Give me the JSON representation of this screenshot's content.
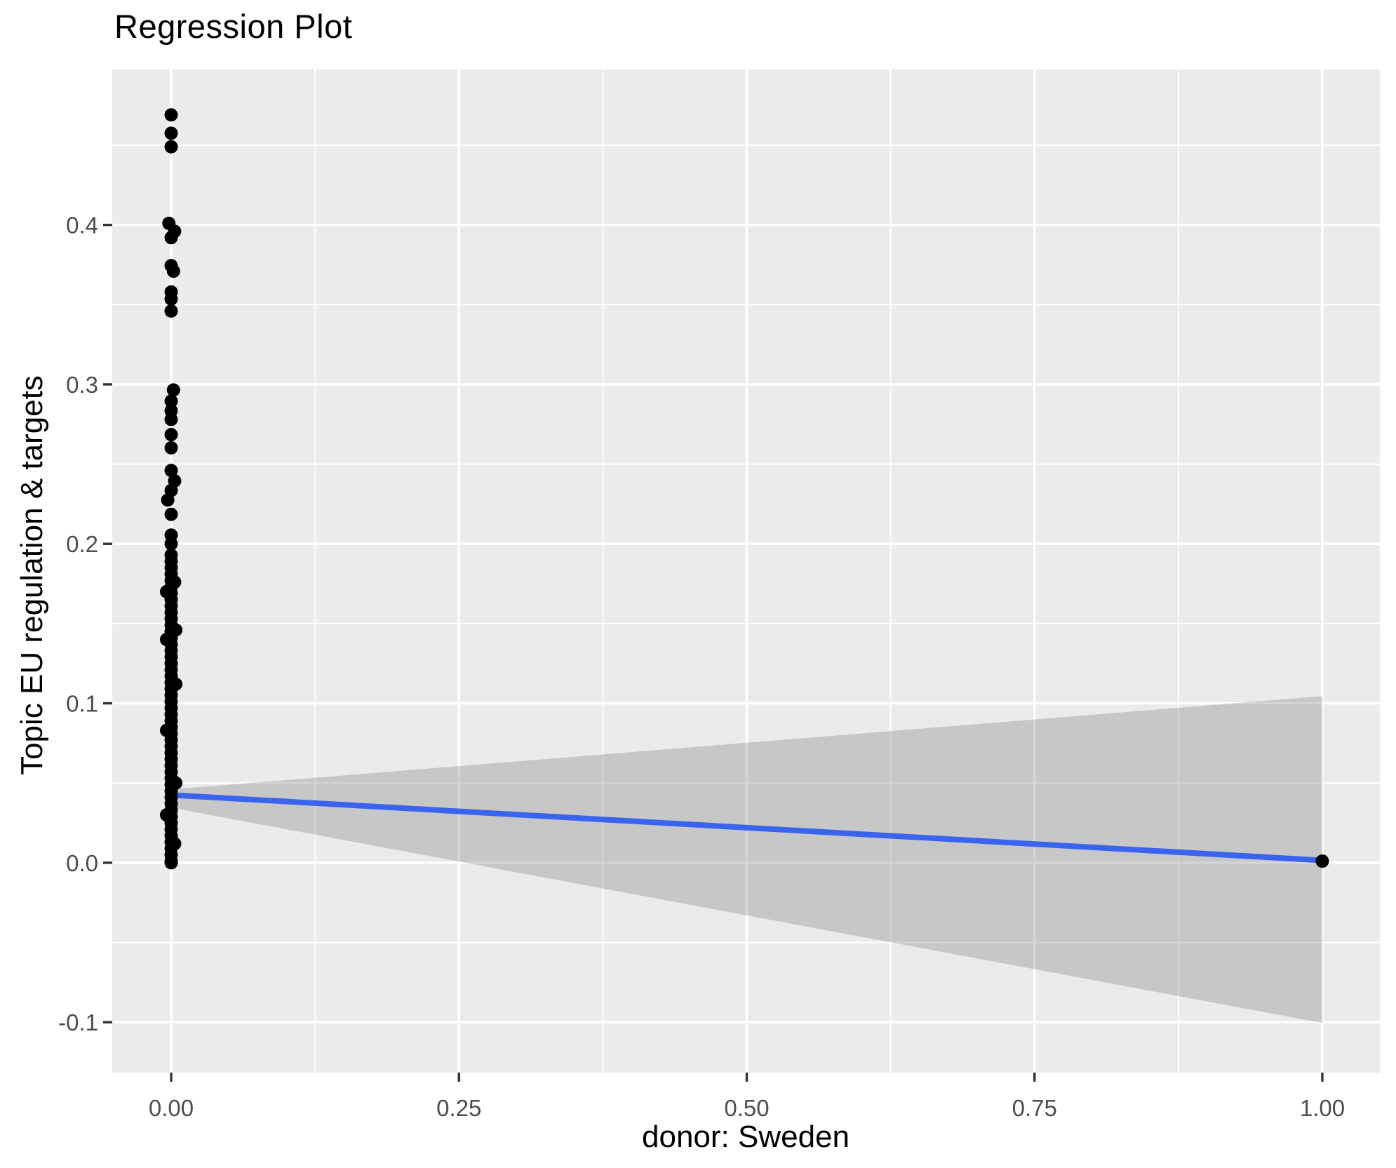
{
  "chart_data": {
    "type": "scatter",
    "title": "Regression Plot",
    "xlabel": "donor: Sweden",
    "ylabel": "Topic EU regulation & targets",
    "legend": "none",
    "grid": true,
    "xlim": [
      -0.0512,
      1.05
    ],
    "ylim": [
      -0.1316,
      0.4975
    ],
    "x_ticks": [
      {
        "value": 0.0,
        "label": "0.00"
      },
      {
        "value": 0.25,
        "label": "0.25"
      },
      {
        "value": 0.5,
        "label": "0.50"
      },
      {
        "value": 0.75,
        "label": "0.75"
      },
      {
        "value": 1.0,
        "label": "1.00"
      }
    ],
    "x_minor_ticks": [
      0.125,
      0.375,
      0.625,
      0.875
    ],
    "y_ticks": [
      {
        "value": -0.1,
        "label": "-0.1"
      },
      {
        "value": 0.0,
        "label": "0.0"
      },
      {
        "value": 0.1,
        "label": "0.1"
      },
      {
        "value": 0.2,
        "label": "0.2"
      },
      {
        "value": 0.3,
        "label": "0.3"
      },
      {
        "value": 0.4,
        "label": "0.4"
      }
    ],
    "y_minor_ticks": [
      -0.05,
      0.05,
      0.15,
      0.25,
      0.35,
      0.45
    ],
    "regression_line": {
      "x": [
        0,
        1
      ],
      "y": [
        0.0425,
        0.0015
      ]
    },
    "confidence_band": {
      "x": [
        0,
        1
      ],
      "upper": [
        0.046,
        0.1045
      ],
      "lower": [
        0.0345,
        -0.1005
      ]
    },
    "points": [
      [
        0,
        0.469
      ],
      [
        0,
        0.4575
      ],
      [
        0,
        0.449
      ],
      [
        -0.002,
        0.401
      ],
      [
        0.003,
        0.396
      ],
      [
        0,
        0.392
      ],
      [
        0,
        0.3745
      ],
      [
        0.002,
        0.371
      ],
      [
        0,
        0.358
      ],
      [
        0,
        0.3535
      ],
      [
        0,
        0.346
      ],
      [
        0.002,
        0.2965
      ],
      [
        0,
        0.2895
      ],
      [
        0,
        0.2835
      ],
      [
        0,
        0.278
      ],
      [
        0,
        0.2685
      ],
      [
        0,
        0.2602
      ],
      [
        0,
        0.246
      ],
      [
        0.003,
        0.2395
      ],
      [
        0,
        0.2335
      ],
      [
        -0.003,
        0.2275
      ],
      [
        0,
        0.2185
      ],
      [
        0,
        0.2055
      ],
      [
        0,
        0.2
      ],
      [
        0,
        0.193
      ],
      [
        0,
        0.189
      ],
      [
        0,
        0.185
      ],
      [
        0,
        0.181
      ],
      [
        0,
        0.177
      ],
      [
        0,
        0.173
      ],
      [
        0,
        0.169
      ],
      [
        0,
        0.165
      ],
      [
        0,
        0.161
      ],
      [
        0,
        0.157
      ],
      [
        0,
        0.153
      ],
      [
        0,
        0.149
      ],
      [
        0,
        0.145
      ],
      [
        0,
        0.141
      ],
      [
        0,
        0.137
      ],
      [
        0,
        0.133
      ],
      [
        0,
        0.129
      ],
      [
        0,
        0.125
      ],
      [
        0,
        0.121
      ],
      [
        0,
        0.117
      ],
      [
        0,
        0.113
      ],
      [
        0,
        0.109
      ],
      [
        0,
        0.105
      ],
      [
        0,
        0.101
      ],
      [
        0,
        0.097
      ],
      [
        0,
        0.093
      ],
      [
        0,
        0.089
      ],
      [
        0,
        0.085
      ],
      [
        0,
        0.081
      ],
      [
        0,
        0.077
      ],
      [
        0,
        0.073
      ],
      [
        0,
        0.069
      ],
      [
        0,
        0.065
      ],
      [
        0,
        0.061
      ],
      [
        0,
        0.057
      ],
      [
        0,
        0.053
      ],
      [
        0,
        0.049
      ],
      [
        0,
        0.045
      ],
      [
        0,
        0.041
      ],
      [
        0,
        0.037
      ],
      [
        0,
        0.033
      ],
      [
        0,
        0.029
      ],
      [
        0,
        0.025
      ],
      [
        0,
        0.021
      ],
      [
        0,
        0.017
      ],
      [
        0,
        0.013
      ],
      [
        0,
        0.009
      ],
      [
        0,
        0.005
      ],
      [
        0,
        0.001
      ],
      [
        0,
        0.0
      ],
      [
        0.003,
        0.176
      ],
      [
        -0.004,
        0.17
      ],
      [
        0.004,
        0.146
      ],
      [
        -0.004,
        0.14
      ],
      [
        0.004,
        0.112
      ],
      [
        -0.004,
        0.083
      ],
      [
        0.004,
        0.05
      ],
      [
        -0.004,
        0.03
      ],
      [
        0.003,
        0.012
      ],
      [
        1,
        0.001
      ]
    ],
    "colors": {
      "figure_background": "#FFFFFF",
      "panel_background": "#EBEBEB",
      "grid_major": "#FFFFFF",
      "grid_minor": "#FFFFFF",
      "ribbon_fill": "#737373",
      "ribbon_opacity": "0.30",
      "regression_line": "#3B64EE",
      "points": "#000000",
      "tick_marks": "#333333",
      "tick_labels": "#4D4D4D",
      "titles": "#000000"
    }
  }
}
